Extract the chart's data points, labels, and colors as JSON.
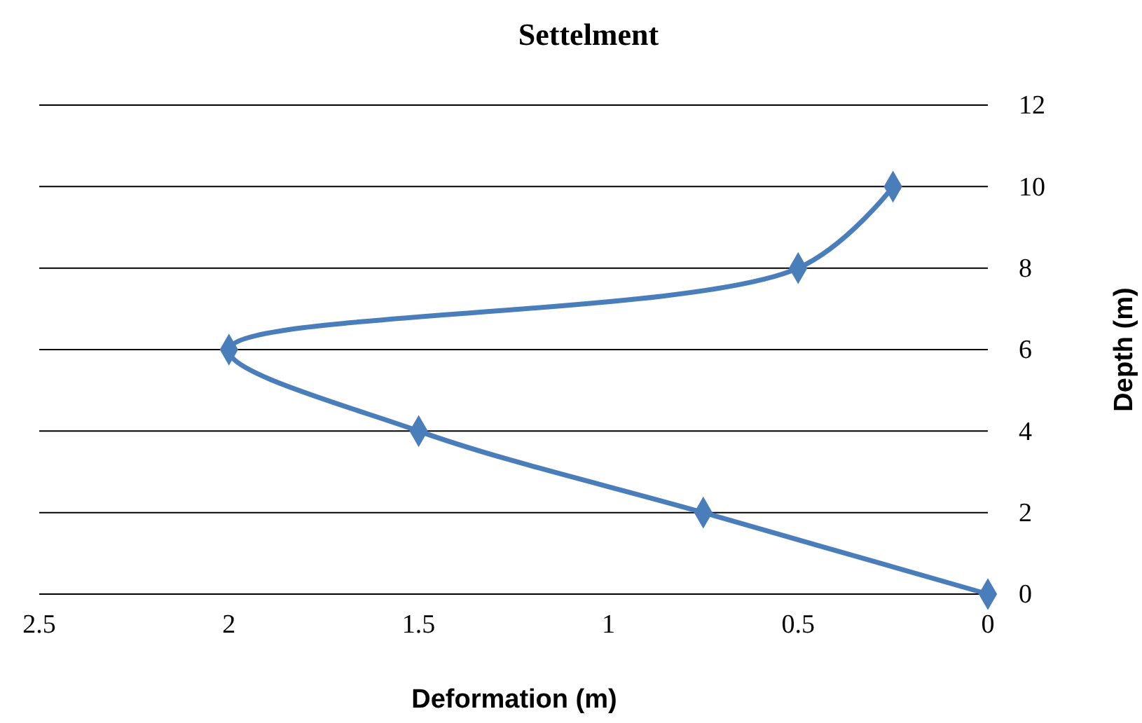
{
  "chart_data": {
    "type": "line",
    "title": "Settelment",
    "xlabel": "Deformation (m)",
    "ylabel": "Depth (m)",
    "x": [
      0,
      0.75,
      1.5,
      2,
      0.5,
      0.25
    ],
    "series": [
      {
        "color": "#4a7ebb",
        "values": [
          0,
          2,
          4,
          6,
          8,
          10
        ]
      }
    ],
    "xlim": [
      2.5,
      0
    ],
    "xticks": [
      2.5,
      2,
      1.5,
      1,
      0.5,
      0
    ],
    "ylim": [
      0,
      12
    ],
    "yticks": [
      0,
      2,
      4,
      6,
      8,
      10,
      12
    ],
    "grid": "y",
    "marker": "diamond",
    "line_style": "solid"
  }
}
